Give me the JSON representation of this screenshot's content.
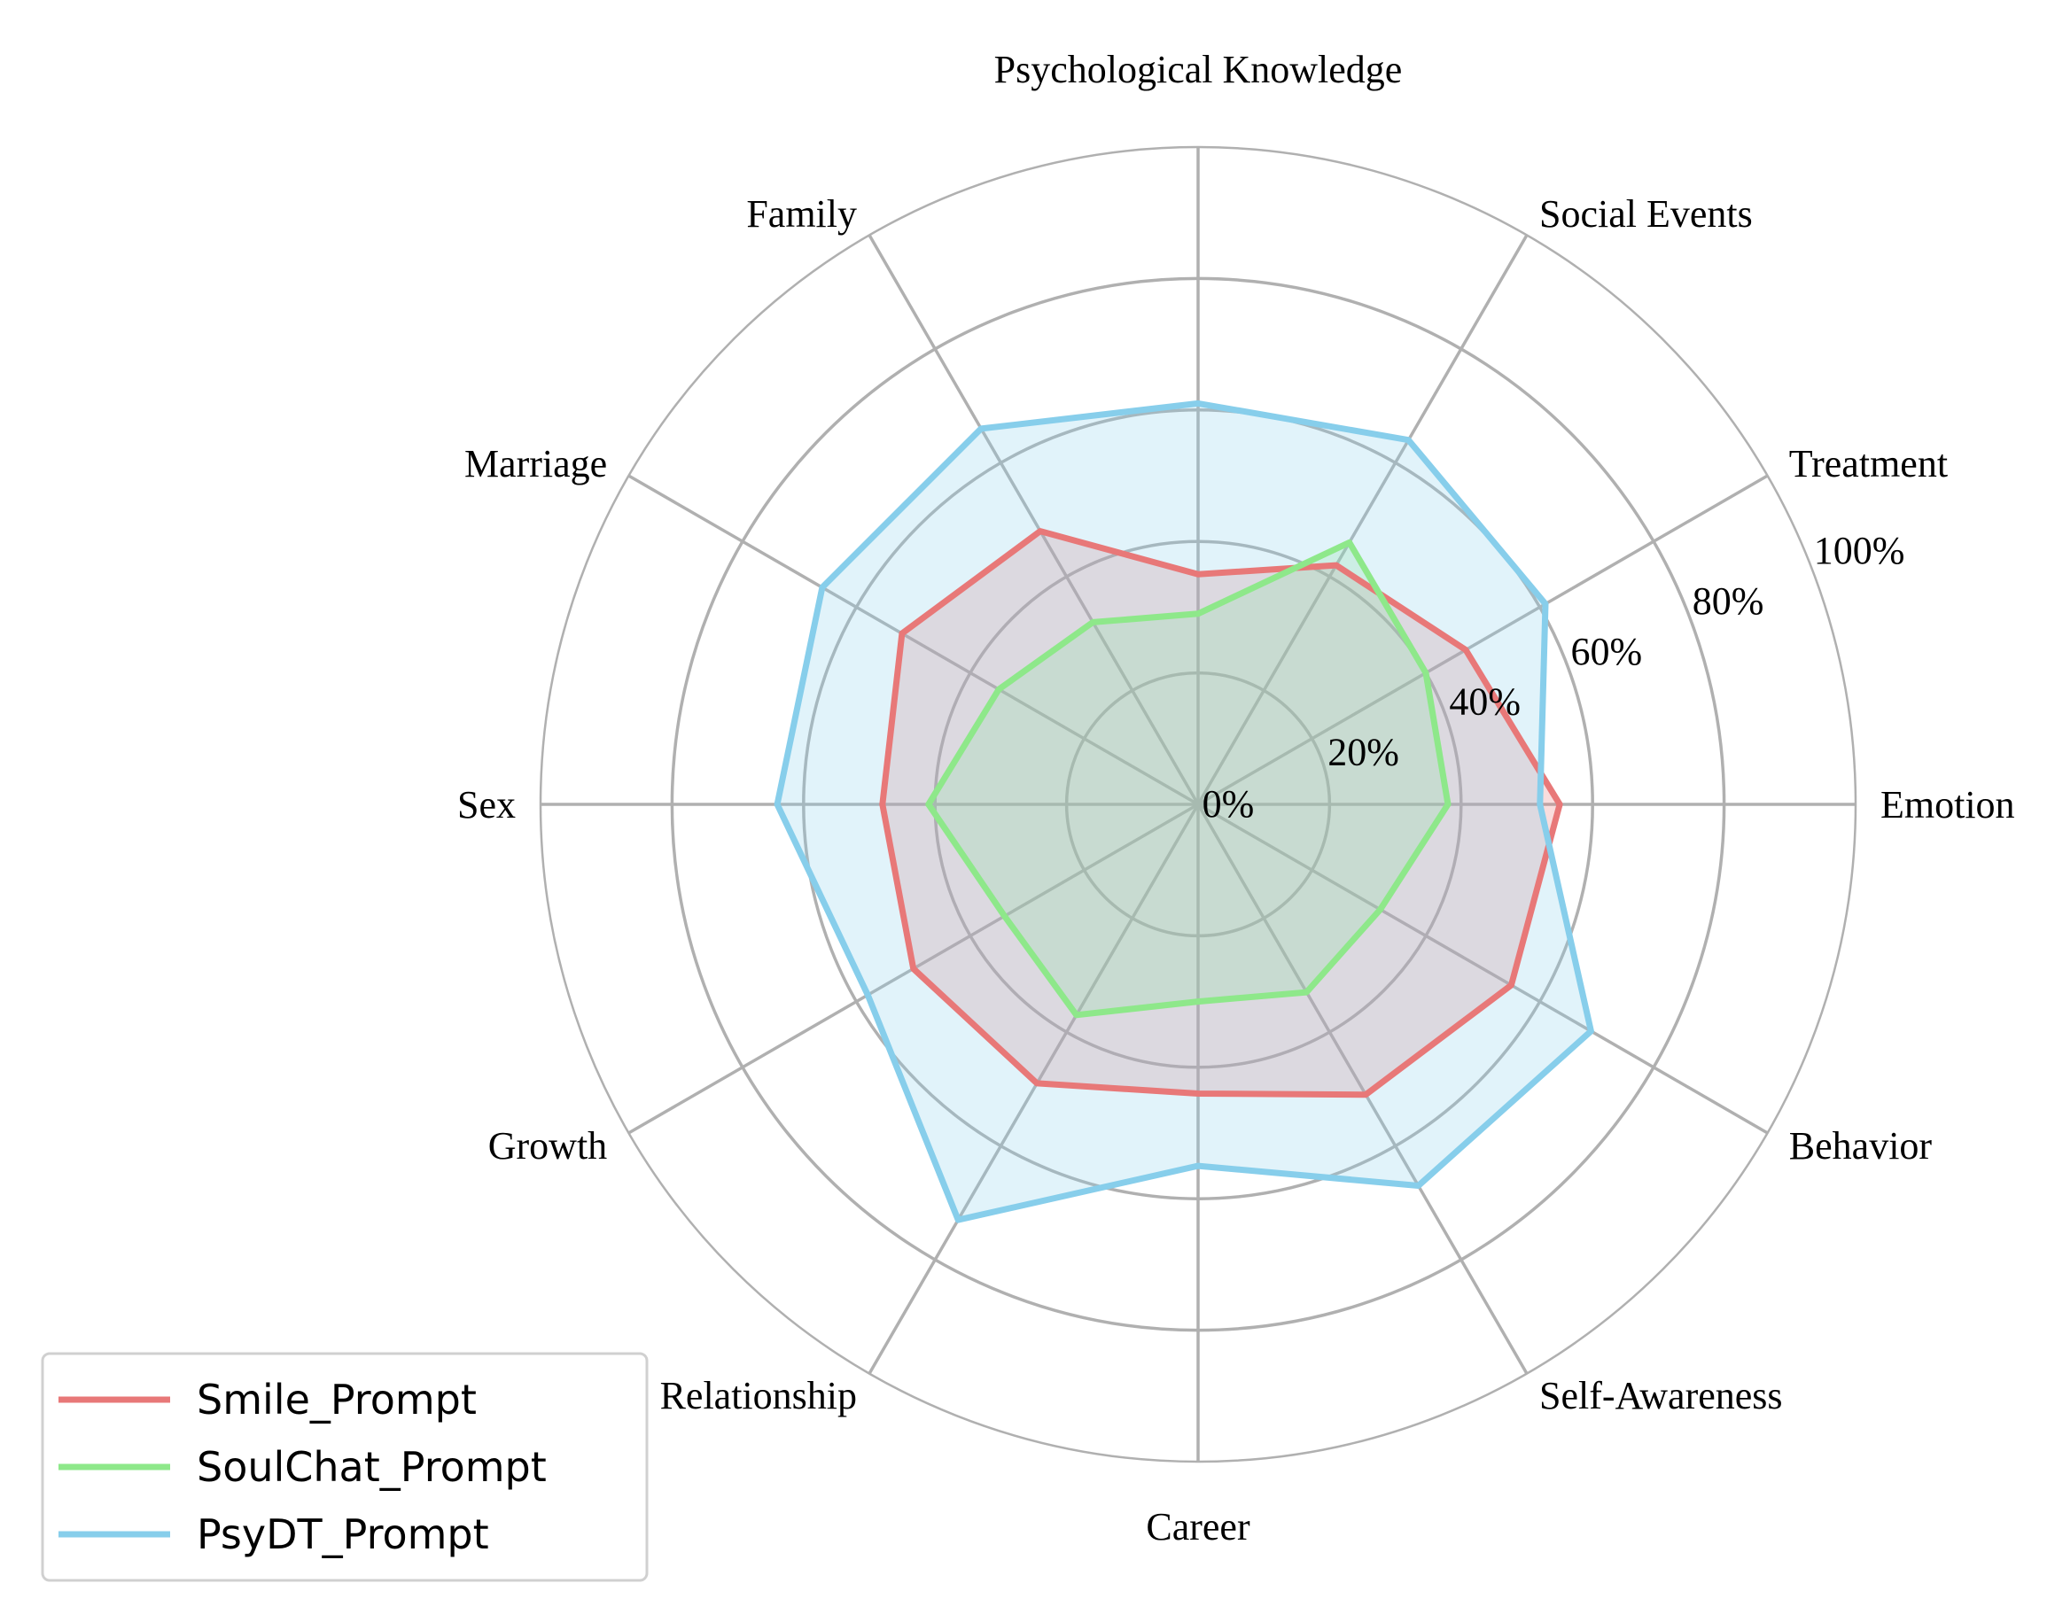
{
  "chart_data": {
    "type": "radar",
    "title": "",
    "categories": [
      "Emotion",
      "Treatment",
      "Social Events",
      "Psychological Knowledge",
      "Family",
      "Marriage",
      "Sex",
      "Growth",
      "Relationship",
      "Career",
      "Self-Awareness",
      "Behavior"
    ],
    "rlim": [
      0,
      100
    ],
    "r_ticks": [
      "0%",
      "20%",
      "40%",
      "60%",
      "80%",
      "100%"
    ],
    "r_tick_values": [
      0,
      20,
      40,
      60,
      80,
      100
    ],
    "grid": true,
    "legend_position": "bottom-left",
    "series": [
      {
        "name": "Smile_Prompt",
        "color": "#e87878",
        "values": [
          55,
          47,
          42,
          35,
          48,
          52,
          48,
          50,
          49,
          44,
          51,
          55
        ]
      },
      {
        "name": "SoulChat_Prompt",
        "color": "#8ee88a",
        "values": [
          38,
          40,
          46,
          29,
          32,
          35,
          41,
          34,
          37,
          30,
          33,
          32
        ]
      },
      {
        "name": "PsyDT_Prompt",
        "color": "#87ceeb",
        "values": [
          52,
          61,
          64,
          61,
          66,
          66,
          64,
          58,
          73,
          55,
          67,
          69
        ]
      }
    ]
  }
}
